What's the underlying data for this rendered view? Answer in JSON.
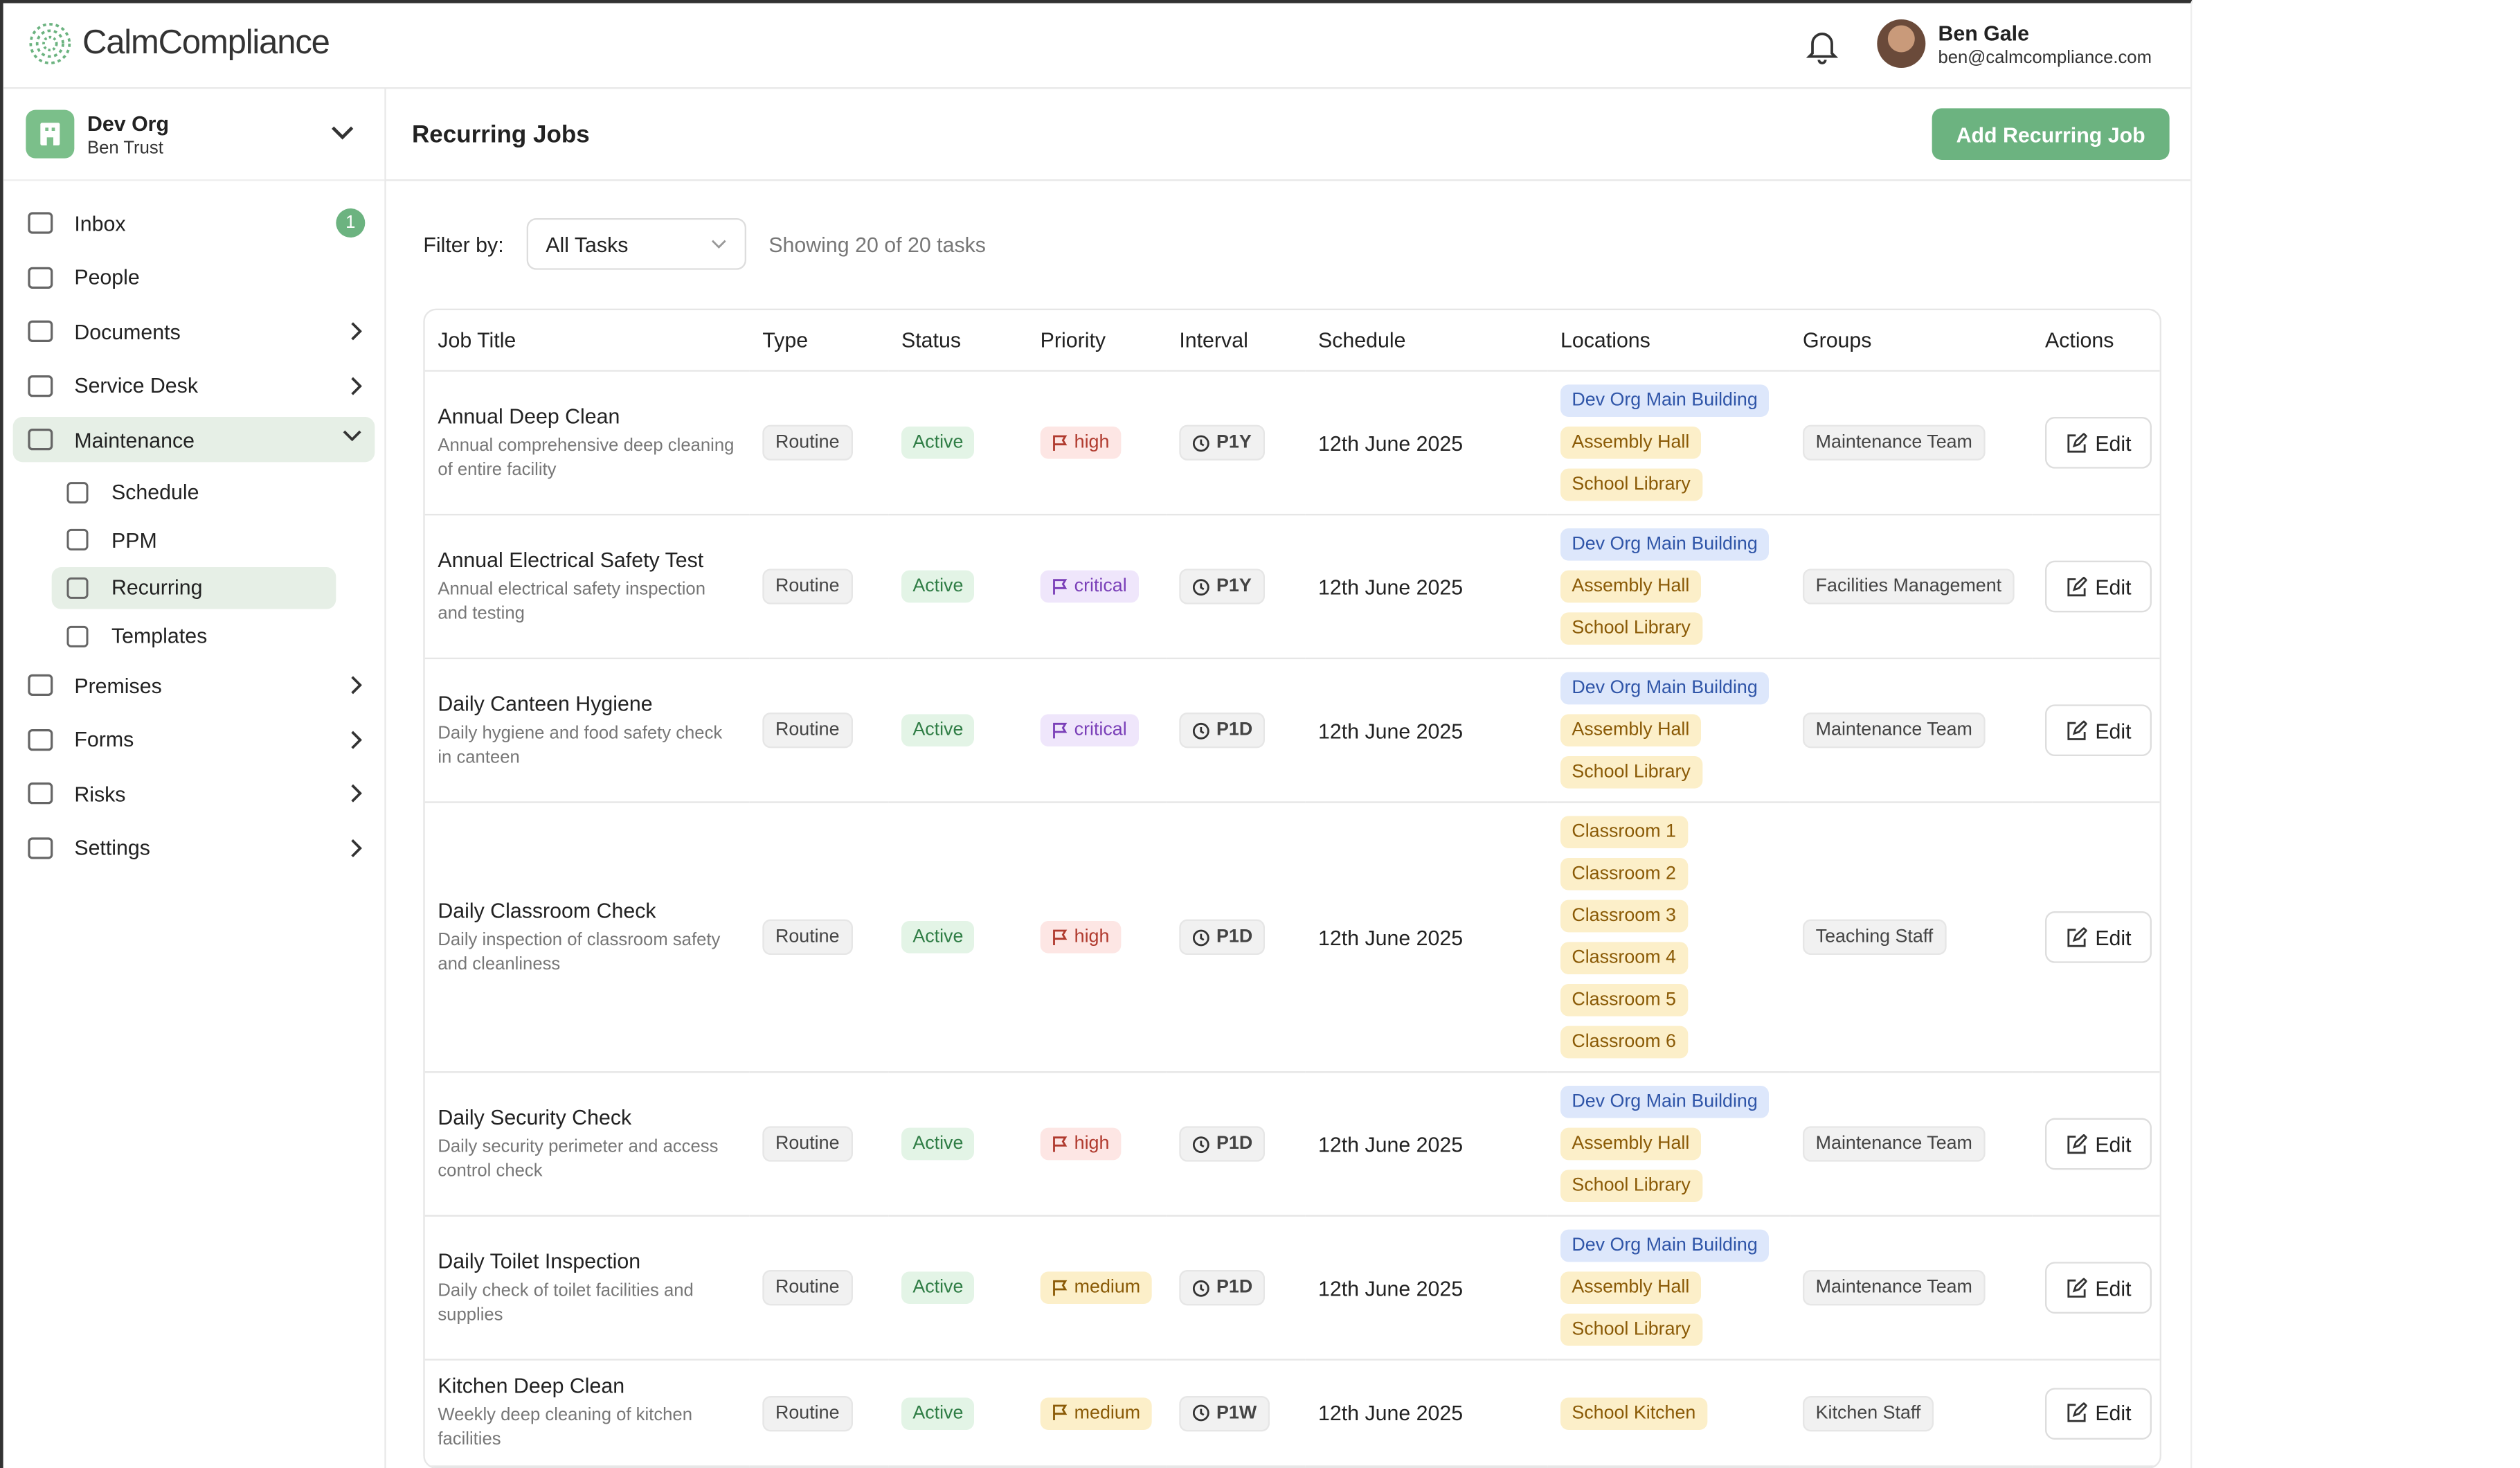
{
  "header": {
    "logo": "CalmCompliance",
    "user_name": "Ben Gale",
    "user_email": "ben@calmcompliance.com"
  },
  "sidebar": {
    "org_name": "Dev Org",
    "org_sub": "Ben Trust",
    "nav": [
      {
        "label": "Inbox",
        "badge": "1"
      },
      {
        "label": "People"
      },
      {
        "label": "Documents"
      },
      {
        "label": "Service Desk"
      },
      {
        "label": "Maintenance",
        "children": [
          "Schedule",
          "PPM",
          "Recurring",
          "Templates"
        ]
      },
      {
        "label": "Premises"
      },
      {
        "label": "Forms"
      },
      {
        "label": "Risks"
      },
      {
        "label": "Settings"
      }
    ]
  },
  "page": {
    "title": "Recurring Jobs",
    "add_button": "Add Recurring Job",
    "filter_label": "Filter by:",
    "filter_value": "All Tasks",
    "showing": "Showing 20 of 20 tasks"
  },
  "table": {
    "columns": [
      "Job Title",
      "Type",
      "Status",
      "Priority",
      "Interval",
      "Schedule",
      "Locations",
      "Groups",
      "Actions"
    ],
    "rows": [
      {
        "title": "Annual Deep Clean",
        "description": "Annual comprehensive deep cleaning of entire facility",
        "type": "Routine",
        "status": "Active",
        "priority": "high",
        "interval": "P1Y",
        "schedule": "12th June 2025",
        "locations": [
          "Dev Org Main Building",
          "Assembly Hall",
          "School Library"
        ],
        "group": "Maintenance Team",
        "action": "Edit"
      },
      {
        "title": "Annual Electrical Safety Test",
        "description": "Annual electrical safety inspection and testing",
        "type": "Routine",
        "status": "Active",
        "priority": "critical",
        "interval": "P1Y",
        "schedule": "12th June 2025",
        "locations": [
          "Dev Org Main Building",
          "Assembly Hall",
          "School Library"
        ],
        "group": "Facilities Management",
        "action": "Edit"
      },
      {
        "title": "Daily Canteen Hygiene",
        "description": "Daily hygiene and food safety check in canteen",
        "type": "Routine",
        "status": "Active",
        "priority": "critical",
        "interval": "P1D",
        "schedule": "12th June 2025",
        "locations": [
          "Dev Org Main Building",
          "Assembly Hall",
          "School Library"
        ],
        "group": "Maintenance Team",
        "action": "Edit"
      },
      {
        "title": "Daily Classroom Check",
        "description": "Daily inspection of classroom safety and cleanliness",
        "type": "Routine",
        "status": "Active",
        "priority": "high",
        "interval": "P1D",
        "schedule": "12th June 2025",
        "locations": [
          "Classroom 1",
          "Classroom 2",
          "Classroom 3",
          "Classroom 4",
          "Classroom 5",
          "Classroom 6"
        ],
        "group": "Teaching Staff",
        "action": "Edit"
      },
      {
        "title": "Daily Security Check",
        "description": "Daily security perimeter and access control check",
        "type": "Routine",
        "status": "Active",
        "priority": "high",
        "interval": "P1D",
        "schedule": "12th June 2025",
        "locations": [
          "Dev Org Main Building",
          "Assembly Hall",
          "School Library"
        ],
        "group": "Maintenance Team",
        "action": "Edit"
      },
      {
        "title": "Daily Toilet Inspection",
        "description": "Daily check of toilet facilities and supplies",
        "type": "Routine",
        "status": "Active",
        "priority": "medium",
        "interval": "P1D",
        "schedule": "12th June 2025",
        "locations": [
          "Dev Org Main Building",
          "Assembly Hall",
          "School Library"
        ],
        "group": "Maintenance Team",
        "action": "Edit"
      },
      {
        "title": "Kitchen Deep Clean",
        "description": "Weekly deep cleaning of kitchen facilities",
        "type": "Routine",
        "status": "Active",
        "priority": "medium",
        "interval": "P1W",
        "schedule": "12th June 2025",
        "locations": [
          "School Kitchen"
        ],
        "group": "Kitchen Staff",
        "action": "Edit"
      }
    ]
  }
}
